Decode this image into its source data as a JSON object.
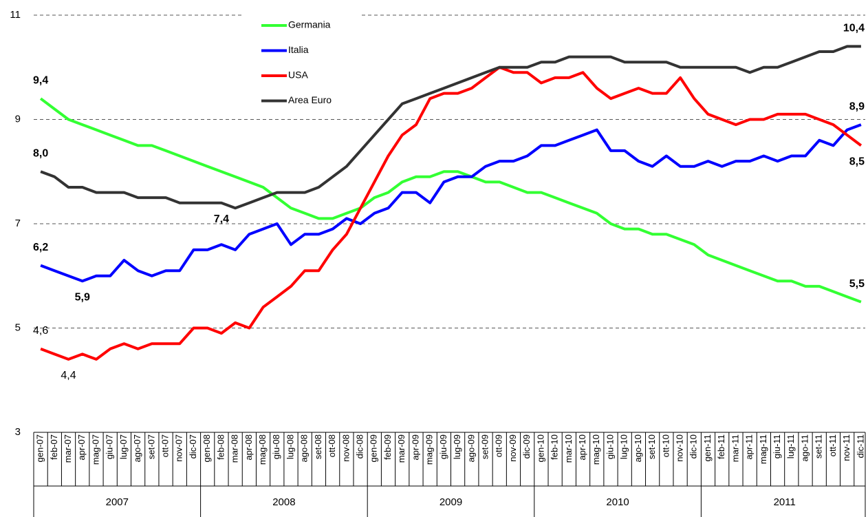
{
  "chart_data": {
    "type": "line",
    "categories": [
      "gen-07",
      "feb-07",
      "mar-07",
      "apr-07",
      "mag-07",
      "giu-07",
      "lug-07",
      "ago-07",
      "set-07",
      "ott-07",
      "nov-07",
      "dic-07",
      "gen-08",
      "feb-08",
      "mar-08",
      "apr-08",
      "mag-08",
      "giu-08",
      "lug-08",
      "ago-08",
      "set-08",
      "ott-08",
      "nov-08",
      "dic-08",
      "gen-09",
      "feb-09",
      "mar-09",
      "apr-09",
      "mag-09",
      "giu-09",
      "lug-09",
      "ago-09",
      "set-09",
      "ott-09",
      "nov-09",
      "dic-09",
      "gen-10",
      "feb-10",
      "mar-10",
      "apr-10",
      "mag-10",
      "giu-10",
      "lug-10",
      "ago-10",
      "set-10",
      "ott-10",
      "nov-10",
      "dic-10",
      "gen-11",
      "feb-11",
      "mar-11",
      "apr-11",
      "mag-11",
      "giu-11",
      "lug-11",
      "ago-11",
      "set-11",
      "ott-11",
      "nov-11",
      "dic-11"
    ],
    "year_groups": [
      "2007",
      "2008",
      "2009",
      "2010",
      "2011"
    ],
    "ylim": [
      3,
      11
    ],
    "yticks": [
      3,
      5,
      7,
      9,
      11
    ],
    "grid": true,
    "series": [
      {
        "name": "Germania",
        "color": "#33ff33",
        "values": [
          9.4,
          9.2,
          9.0,
          8.9,
          8.8,
          8.7,
          8.6,
          8.5,
          8.5,
          8.4,
          8.3,
          8.2,
          8.1,
          8.0,
          7.9,
          7.8,
          7.7,
          7.5,
          7.3,
          7.2,
          7.1,
          7.1,
          7.2,
          7.3,
          7.5,
          7.6,
          7.8,
          7.9,
          7.9,
          8.0,
          8.0,
          7.9,
          7.8,
          7.8,
          7.7,
          7.6,
          7.6,
          7.5,
          7.4,
          7.3,
          7.2,
          7.0,
          6.9,
          6.9,
          6.8,
          6.8,
          6.7,
          6.6,
          6.4,
          6.3,
          6.2,
          6.1,
          6.0,
          5.9,
          5.9,
          5.8,
          5.8,
          5.7,
          5.6,
          5.5
        ],
        "value_labels": [
          "9,4",
          null,
          null,
          null,
          null,
          null,
          null,
          null,
          null,
          null,
          null,
          null,
          null,
          null,
          null,
          null,
          null,
          null,
          null,
          null,
          null,
          null,
          null,
          null,
          null,
          null,
          null,
          null,
          null,
          null,
          null,
          null,
          null,
          null,
          null,
          null,
          null,
          null,
          null,
          null,
          null,
          null,
          null,
          null,
          null,
          null,
          null,
          null,
          null,
          null,
          null,
          null,
          null,
          null,
          null,
          null,
          null,
          null,
          null,
          "5,5"
        ]
      },
      {
        "name": "Italia",
        "color": "#0000ff",
        "values": [
          6.2,
          6.1,
          6.0,
          5.9,
          6.0,
          6.0,
          6.3,
          6.1,
          6.0,
          6.1,
          6.1,
          6.5,
          6.5,
          6.6,
          6.5,
          6.8,
          6.9,
          7.0,
          6.6,
          6.8,
          6.8,
          6.9,
          7.1,
          7.0,
          7.2,
          7.3,
          7.6,
          7.6,
          7.4,
          7.8,
          7.9,
          7.9,
          8.1,
          8.2,
          8.2,
          8.3,
          8.5,
          8.5,
          8.6,
          8.7,
          8.8,
          8.4,
          8.4,
          8.2,
          8.1,
          8.3,
          8.1,
          8.1,
          8.2,
          8.1,
          8.2,
          8.2,
          8.3,
          8.2,
          8.3,
          8.3,
          8.6,
          8.5,
          8.8,
          8.9
        ],
        "value_labels": [
          "6,2",
          null,
          null,
          "5,9",
          null,
          null,
          null,
          null,
          null,
          null,
          null,
          null,
          null,
          null,
          null,
          null,
          null,
          null,
          null,
          null,
          null,
          null,
          null,
          null,
          null,
          null,
          null,
          null,
          null,
          null,
          null,
          null,
          null,
          null,
          null,
          null,
          null,
          null,
          null,
          null,
          null,
          null,
          null,
          null,
          null,
          null,
          null,
          null,
          null,
          null,
          null,
          null,
          null,
          null,
          null,
          null,
          null,
          null,
          null,
          "8,9"
        ]
      },
      {
        "name": "USA",
        "color": "#ff0000",
        "values": [
          4.6,
          4.5,
          4.4,
          4.5,
          4.4,
          4.6,
          4.7,
          4.6,
          4.7,
          4.7,
          4.7,
          5.0,
          5.0,
          4.9,
          5.1,
          5.0,
          5.4,
          5.6,
          5.8,
          6.1,
          6.1,
          6.5,
          6.8,
          7.3,
          7.8,
          8.3,
          8.7,
          8.9,
          9.4,
          9.5,
          9.5,
          9.6,
          9.8,
          10.0,
          9.9,
          9.9,
          9.7,
          9.8,
          9.8,
          9.9,
          9.6,
          9.4,
          9.5,
          9.6,
          9.5,
          9.5,
          9.8,
          9.4,
          9.1,
          9.0,
          8.9,
          9.0,
          9.0,
          9.1,
          9.1,
          9.1,
          9.0,
          8.9,
          8.7,
          8.5
        ],
        "value_labels": [
          "4,6",
          null,
          "4,4",
          null,
          null,
          null,
          null,
          null,
          null,
          null,
          null,
          null,
          null,
          null,
          null,
          null,
          null,
          null,
          null,
          null,
          null,
          null,
          null,
          null,
          null,
          null,
          null,
          null,
          null,
          null,
          null,
          null,
          null,
          null,
          null,
          null,
          null,
          null,
          null,
          null,
          null,
          null,
          null,
          null,
          null,
          null,
          null,
          null,
          null,
          null,
          null,
          null,
          null,
          null,
          null,
          null,
          null,
          null,
          null,
          "8,5"
        ]
      },
      {
        "name": "Area Euro",
        "color": "#333333",
        "values": [
          8.0,
          7.9,
          7.7,
          7.7,
          7.6,
          7.6,
          7.6,
          7.5,
          7.5,
          7.5,
          7.4,
          7.4,
          7.4,
          7.4,
          7.3,
          7.4,
          7.5,
          7.6,
          7.6,
          7.6,
          7.7,
          7.9,
          8.1,
          8.4,
          8.7,
          9.0,
          9.3,
          9.4,
          9.5,
          9.6,
          9.7,
          9.8,
          9.9,
          10.0,
          10.0,
          10.0,
          10.1,
          10.1,
          10.2,
          10.2,
          10.2,
          10.2,
          10.1,
          10.1,
          10.1,
          10.1,
          10.0,
          10.0,
          10.0,
          10.0,
          10.0,
          9.9,
          10.0,
          10.0,
          10.1,
          10.2,
          10.3,
          10.3,
          10.4,
          10.4
        ],
        "value_labels": [
          "8,0",
          null,
          null,
          null,
          null,
          null,
          null,
          null,
          null,
          null,
          null,
          null,
          null,
          "7,4",
          null,
          null,
          null,
          null,
          null,
          null,
          null,
          null,
          null,
          null,
          null,
          null,
          null,
          null,
          null,
          null,
          null,
          null,
          null,
          null,
          null,
          null,
          null,
          null,
          null,
          null,
          null,
          null,
          null,
          null,
          null,
          null,
          null,
          null,
          null,
          null,
          null,
          null,
          null,
          null,
          null,
          null,
          null,
          null,
          null,
          "10,4"
        ]
      }
    ]
  }
}
